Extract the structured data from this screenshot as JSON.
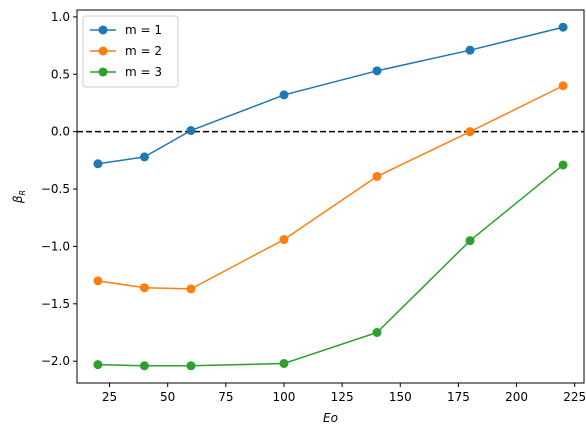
{
  "chart_data": {
    "type": "line",
    "xlabel": "Eo",
    "ylabel": "β_R",
    "ylabel_main": "β",
    "ylabel_sub": "R",
    "xlim": [
      11,
      229
    ],
    "ylim": [
      -2.19,
      1.06
    ],
    "x_ticks": [
      25,
      50,
      75,
      100,
      125,
      150,
      175,
      200,
      225
    ],
    "x_tick_labels": [
      "25",
      "50",
      "75",
      "100",
      "125",
      "150",
      "175",
      "200",
      "225"
    ],
    "y_ticks": [
      -2.0,
      -1.5,
      -1.0,
      -0.5,
      0.0,
      0.5,
      1.0
    ],
    "y_tick_labels": [
      "−2.0",
      "−1.5",
      "−1.0",
      "−0.5",
      "0.0",
      "0.5",
      "1.0"
    ],
    "x": [
      20,
      40,
      60,
      100,
      140,
      180,
      220
    ],
    "series": [
      {
        "name": "m = 1",
        "color": "#1f77b4",
        "x": [
          20,
          40,
          60,
          100,
          140,
          180,
          220
        ],
        "values": [
          -0.28,
          -0.22,
          0.01,
          0.32,
          0.53,
          0.71,
          0.91
        ]
      },
      {
        "name": "m = 2",
        "color": "#ff7f0e",
        "x": [
          20,
          40,
          60,
          100,
          140,
          180,
          220
        ],
        "values": [
          -1.3,
          -1.36,
          -1.37,
          -0.94,
          -0.39,
          0.0,
          0.4
        ]
      },
      {
        "name": "m = 3",
        "color": "#2ca02c",
        "x": [
          20,
          40,
          60,
          100,
          140,
          180,
          220
        ],
        "values": [
          -2.03,
          -2.04,
          -2.04,
          -2.02,
          -1.75,
          -0.95,
          -0.29
        ]
      }
    ],
    "reference_line": {
      "y": 0.0,
      "style": "dashed",
      "color": "#000000"
    },
    "legend": {
      "position": "top-left"
    },
    "grid": false
  }
}
